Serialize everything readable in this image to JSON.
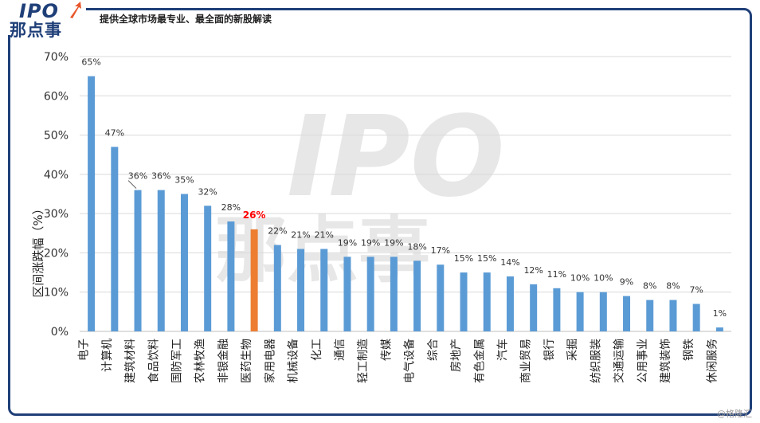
{
  "header": {
    "logo_text": "IPO",
    "logo_cn": "那点事",
    "tagline": "提供全球市场最专业、最全面的新股解读"
  },
  "footer": {
    "watermark": "@格隆汇"
  },
  "colors": {
    "frame": "#1f3f78",
    "bar": "#5b9bd5",
    "highlight_bar": "#ed7d31",
    "highlight_label": "#ff0000"
  },
  "chart_data": {
    "type": "bar",
    "title": "",
    "xlabel": "",
    "ylabel": "区间涨跌幅（%）",
    "ylim": [
      0,
      70
    ],
    "yticks": [
      "0%",
      "10%",
      "20%",
      "30%",
      "40%",
      "50%",
      "60%",
      "70%"
    ],
    "grid": true,
    "categories": [
      "电子",
      "计算机",
      "建筑材料",
      "食品饮料",
      "国防军工",
      "农林牧渔",
      "非银金融",
      "医药生物",
      "家用电器",
      "机械设备",
      "化工",
      "通信",
      "轻工制造",
      "传媒",
      "电气设备",
      "综合",
      "房地产",
      "有色金属",
      "汽车",
      "商业贸易",
      "银行",
      "采掘",
      "纺织服装",
      "交通运输",
      "公用事业",
      "建筑装饰",
      "钢铁",
      "休闲服务"
    ],
    "values": [
      65,
      47,
      36,
      36,
      35,
      32,
      28,
      26,
      22,
      21,
      21,
      19,
      19,
      19,
      18,
      17,
      15,
      15,
      14,
      12,
      11,
      10,
      10,
      9,
      8,
      8,
      7,
      1
    ],
    "labels": [
      "65%",
      "47%",
      "36%",
      "36%",
      "35%",
      "32%",
      "28%",
      "26%",
      "22%",
      "21%",
      "21%",
      "19%",
      "19%",
      "19%",
      "18%",
      "17%",
      "15%",
      "15%",
      "14%",
      "12%",
      "11%",
      "10%",
      "10%",
      "9%",
      "8%",
      "8%",
      "7%",
      "1%"
    ],
    "highlight_index": 7
  }
}
